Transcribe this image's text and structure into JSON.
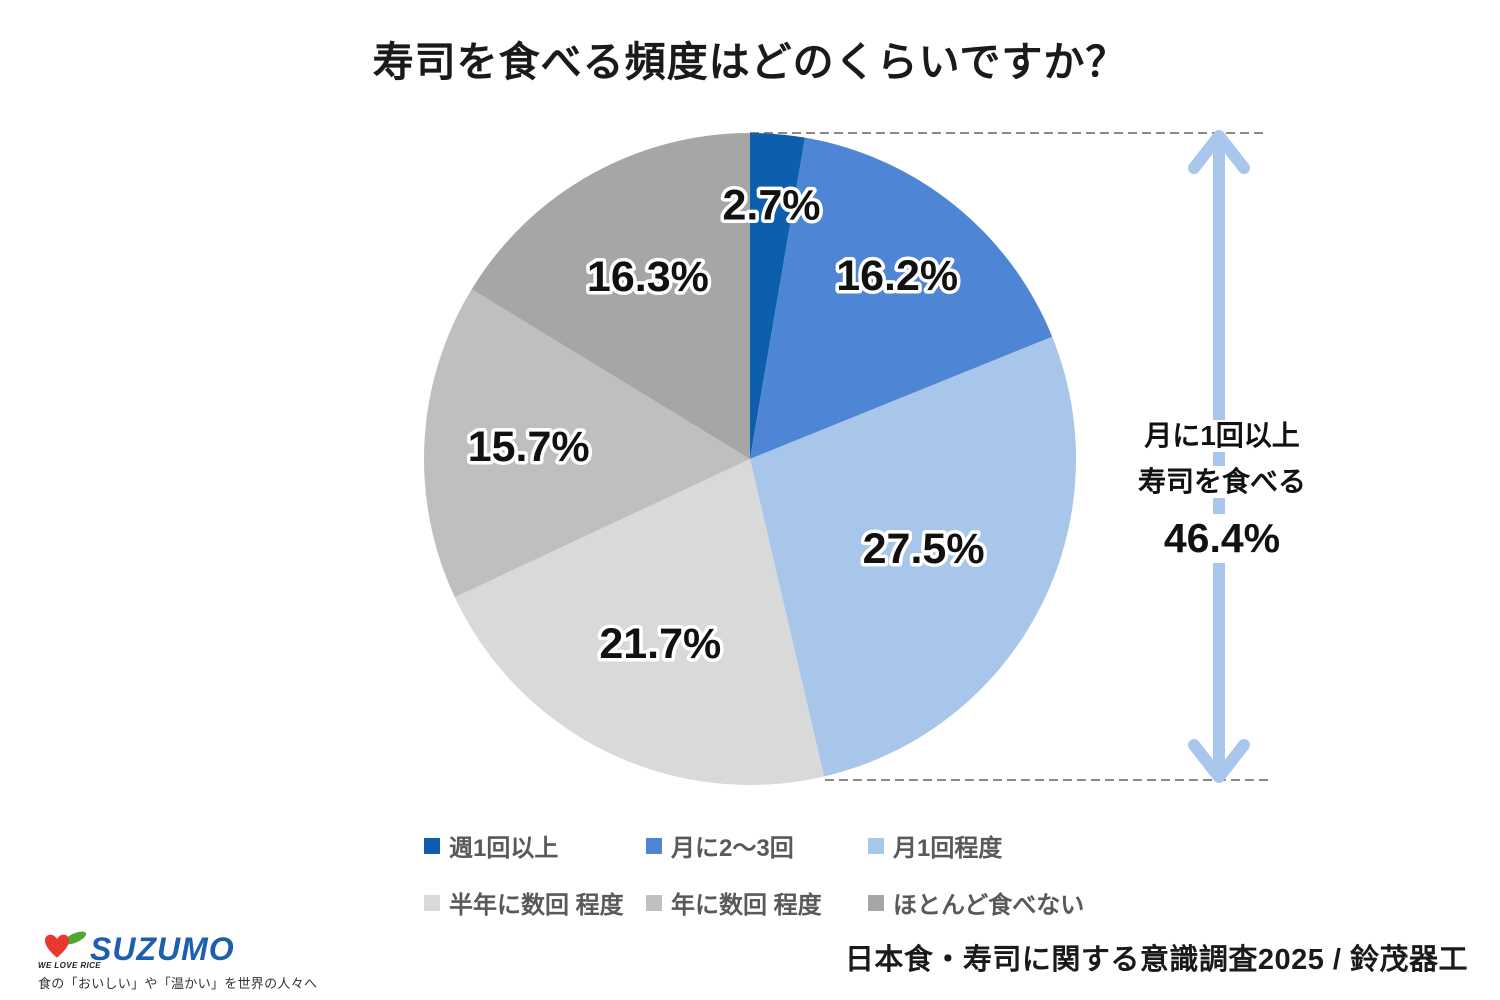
{
  "title": "寿司を食べる頻度はどのくらいですか？",
  "chart_data": {
    "type": "pie",
    "title": "寿司を食べる頻度はどのくらいですか？",
    "unit": "%",
    "start_angle_deg": 0,
    "direction": "clockwise",
    "slices": [
      {
        "label": "週1回以上",
        "value": 2.7,
        "display": "2.7%",
        "color": "#0D5EAD",
        "label_r": 0.78
      },
      {
        "label": "月に2～3回",
        "value": 16.2,
        "display": "16.2%",
        "color": "#4E86D5",
        "label_r": 0.72
      },
      {
        "label": "月1回程度",
        "value": 27.5,
        "display": "27.5%",
        "color": "#A8C6EA",
        "label_r": 0.6
      },
      {
        "label": "半年に数回 程度",
        "value": 21.7,
        "display": "21.7%",
        "color": "#D9D9D9",
        "label_r": 0.63
      },
      {
        "label": "年に数回 程度",
        "value": 15.7,
        "display": "15.7%",
        "color": "#BFBFBF",
        "label_r": 0.68
      },
      {
        "label": "ほとんど食べない",
        "value": 16.3,
        "display": "16.3%",
        "color": "#A6A6A6",
        "label_r": 0.64
      }
    ],
    "legend_position": "bottom",
    "annotation": {
      "line1": "月に1回以上",
      "line2": "寿司を食べる",
      "value": "46.4%"
    },
    "arrow_color": "#A9C7EC",
    "dash_color": "#8A8A8A"
  },
  "footer": {
    "source": "日本食・寿司に関する意識調査2025 / 鈴茂器工"
  },
  "logo": {
    "brand": "SUZUMO",
    "slogan": "WE LOVE RICE",
    "tagline": "食の「おいしい」や「温かい」を世界の人々へ",
    "brand_color": "#1C5FAE",
    "heart_color": "#E8382F",
    "leaf_color": "#53A636"
  }
}
